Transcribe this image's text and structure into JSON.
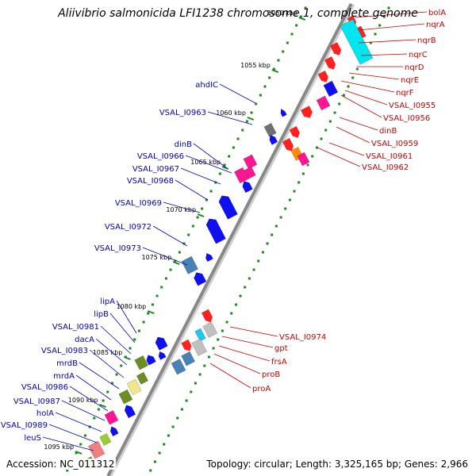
{
  "title": "Aliivibrio salmonicida LFI1238 chromosome 1, complete genome",
  "footer": {
    "accession": "Accession: NC_011312",
    "stats": "Topology: circular; Length: 3,325,165 bp; Genes: 2,966"
  },
  "colors": {
    "right_label": "#cc0000",
    "left_label": "#0000cc",
    "backbone": "#888888",
    "dots": "#1a8a1a"
  },
  "ticks": [
    {
      "label": "1050 kbp"
    },
    {
      "label": "1055 kbp"
    },
    {
      "label": "1060 kbp"
    },
    {
      "label": "1065 kbp"
    },
    {
      "label": "1070 kbp"
    },
    {
      "label": "1075 kbp"
    },
    {
      "label": "1080 kbp"
    },
    {
      "label": "1085 kbp"
    },
    {
      "label": "1090 kbp"
    },
    {
      "label": "1095 kbp"
    }
  ],
  "labels_right": [
    {
      "text": "bolA"
    },
    {
      "text": "nqrA"
    },
    {
      "text": "nqrB"
    },
    {
      "text": "nqrC"
    },
    {
      "text": "nqrD"
    },
    {
      "text": "nqrE"
    },
    {
      "text": "nqrF"
    },
    {
      "text": "VSAL_I0955"
    },
    {
      "text": "VSAL_I0956"
    },
    {
      "text": "dinB"
    },
    {
      "text": "VSAL_I0959"
    },
    {
      "text": "VSAL_I0961"
    },
    {
      "text": "VSAL_I0962"
    },
    {
      "text": "VSAL_I0974"
    },
    {
      "text": "gpt"
    },
    {
      "text": "frsA"
    },
    {
      "text": "proB"
    },
    {
      "text": "proA"
    }
  ],
  "labels_left": [
    {
      "text": "ahdIC"
    },
    {
      "text": "VSAL_I0963"
    },
    {
      "text": "dinB"
    },
    {
      "text": "VSAL_I0966"
    },
    {
      "text": "VSAL_I0967"
    },
    {
      "text": "VSAL_I0968"
    },
    {
      "text": "VSAL_I0969"
    },
    {
      "text": "VSAL_I0972"
    },
    {
      "text": "VSAL_I0973"
    },
    {
      "text": "lipA"
    },
    {
      "text": "lipB"
    },
    {
      "text": "VSAL_I0981"
    },
    {
      "text": "dacA"
    },
    {
      "text": "VSAL_I0983"
    },
    {
      "text": "mrdB"
    },
    {
      "text": "mrdA"
    },
    {
      "text": "VSAL_I0986"
    },
    {
      "text": "VSAL_I0987"
    },
    {
      "text": "holA"
    },
    {
      "text": "VSAL_I0989"
    },
    {
      "text": "leuS"
    }
  ]
}
